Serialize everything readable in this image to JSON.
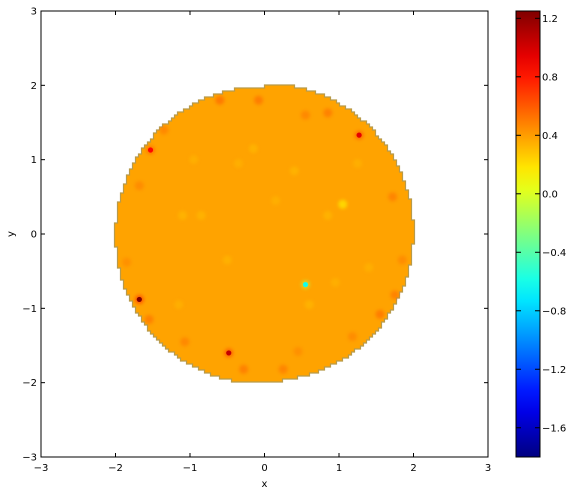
{
  "chart_data": {
    "type": "heatmap",
    "title": "",
    "xlabel": "x",
    "ylabel": "y",
    "xlim": [
      -3,
      3
    ],
    "ylim": [
      -3,
      3
    ],
    "x_ticks": [
      -3,
      -2,
      -1,
      0,
      1,
      2,
      3
    ],
    "y_ticks": [
      -3,
      -2,
      -1,
      0,
      1,
      2,
      3
    ],
    "x_tick_labels": [
      "−3",
      "−2",
      "−1",
      "0",
      "1",
      "2",
      "3"
    ],
    "y_tick_labels": [
      "−3",
      "−2",
      "−1",
      "0",
      "1",
      "2",
      "3"
    ],
    "grid": false,
    "colormap": "jet",
    "domain": {
      "shape": "disk",
      "center": [
        0,
        0
      ],
      "radius": 2.0
    },
    "background_value": 0.38,
    "colorbar": {
      "vmin": -1.8,
      "vmax": 1.25,
      "ticks": [
        -1.6,
        -1.2,
        -0.8,
        -0.4,
        0.0,
        0.4,
        0.8,
        1.2
      ],
      "tick_labels": [
        "−1.6",
        "−1.2",
        "−0.8",
        "−0.4",
        "0.0",
        "0.4",
        "0.8",
        "1.2"
      ]
    },
    "hotspots": [
      {
        "x": 1.27,
        "y": 1.33,
        "value": 0.95
      },
      {
        "x": -1.53,
        "y": 1.13,
        "value": 0.85
      },
      {
        "x": -1.68,
        "y": -0.88,
        "value": 1.25
      },
      {
        "x": -0.48,
        "y": -1.6,
        "value": 1.05
      },
      {
        "x": 0.55,
        "y": -0.68,
        "value": -0.6
      },
      {
        "x": 1.05,
        "y": 0.4,
        "value": 0.1
      },
      {
        "x": -0.6,
        "y": 1.8,
        "value": 0.6
      },
      {
        "x": -0.08,
        "y": 1.8,
        "value": 0.58
      },
      {
        "x": 0.85,
        "y": 1.63,
        "value": 0.56
      },
      {
        "x": 0.55,
        "y": 1.6,
        "value": 0.52
      },
      {
        "x": -1.35,
        "y": 1.4,
        "value": 0.52
      },
      {
        "x": -1.68,
        "y": 0.65,
        "value": 0.5
      },
      {
        "x": 1.72,
        "y": 0.5,
        "value": 0.54
      },
      {
        "x": -1.55,
        "y": -1.15,
        "value": 0.56
      },
      {
        "x": 1.55,
        "y": -1.08,
        "value": 0.58
      },
      {
        "x": 1.75,
        "y": -0.82,
        "value": 0.55
      },
      {
        "x": -1.07,
        "y": -1.45,
        "value": 0.52
      },
      {
        "x": -0.28,
        "y": -1.82,
        "value": 0.56
      },
      {
        "x": 0.25,
        "y": -1.82,
        "value": 0.54
      },
      {
        "x": 1.18,
        "y": -1.38,
        "value": 0.5
      },
      {
        "x": 1.85,
        "y": -0.35,
        "value": 0.5
      },
      {
        "x": 0.45,
        "y": -1.58,
        "value": 0.48
      },
      {
        "x": -1.85,
        "y": -0.38,
        "value": 0.48
      },
      {
        "x": -0.15,
        "y": 1.15,
        "value": 0.3
      },
      {
        "x": -1.1,
        "y": 0.25,
        "value": 0.3
      },
      {
        "x": -0.85,
        "y": 0.25,
        "value": 0.3
      },
      {
        "x": 0.4,
        "y": 0.85,
        "value": 0.3
      },
      {
        "x": 0.6,
        "y": -0.95,
        "value": 0.3
      },
      {
        "x": 0.85,
        "y": 0.25,
        "value": 0.3
      },
      {
        "x": -0.5,
        "y": -0.35,
        "value": 0.31
      },
      {
        "x": 0.95,
        "y": -0.65,
        "value": 0.32
      },
      {
        "x": 1.4,
        "y": -0.45,
        "value": 0.32
      },
      {
        "x": -1.15,
        "y": -0.95,
        "value": 0.32
      },
      {
        "x": 0.15,
        "y": 0.45,
        "value": 0.32
      },
      {
        "x": -0.35,
        "y": 0.95,
        "value": 0.32
      },
      {
        "x": 1.25,
        "y": 0.95,
        "value": 0.32
      },
      {
        "x": -0.95,
        "y": 1.0,
        "value": 0.32
      }
    ]
  }
}
